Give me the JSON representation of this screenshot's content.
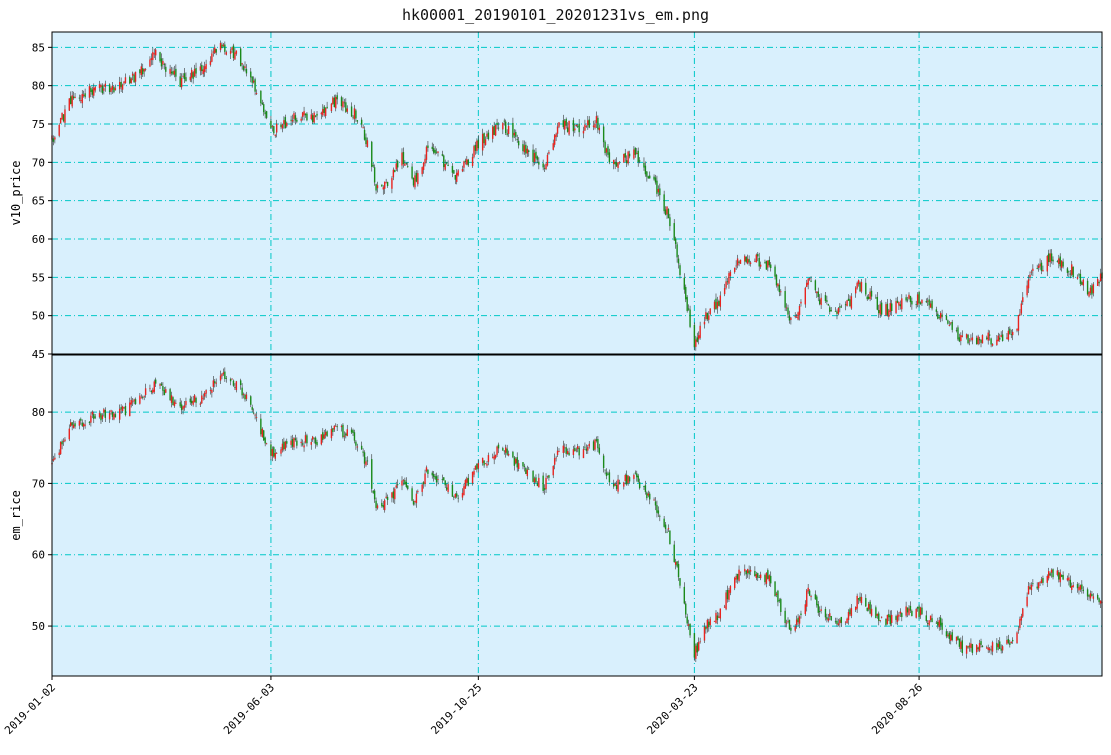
{
  "chart_data": [
    {
      "type": "candlestick",
      "title": "hk00001_20190101_20201231vs_em.png",
      "ylabel": "v10_price",
      "ylim": [
        45,
        87
      ],
      "yticks": [
        45,
        50,
        55,
        60,
        65,
        70,
        75,
        80,
        85
      ],
      "grid": true,
      "up_color": "#e8231f",
      "down_color": "#1a8a1a",
      "background": "#d9f0fd",
      "grid_color": "#00c8c8",
      "x_type": "date",
      "xticks": [
        "2019-01-02",
        "2019-06-03",
        "2019-10-25",
        "2020-03-23",
        "2020-08-26"
      ],
      "x_range": [
        "2019-01-02",
        "2020-12-31"
      ],
      "series": [
        {
          "close_path": [
            [
              "2019-01-02",
              73
            ],
            [
              "2019-01-15",
              78
            ],
            [
              "2019-02-01",
              79.5
            ],
            [
              "2019-02-20",
              80
            ],
            [
              "2019-03-05",
              82
            ],
            [
              "2019-03-15",
              84
            ],
            [
              "2019-04-01",
              80.5
            ],
            [
              "2019-04-15",
              82
            ],
            [
              "2019-04-30",
              85.5
            ],
            [
              "2019-05-10",
              84
            ],
            [
              "2019-05-20",
              81
            ],
            [
              "2019-06-03",
              74
            ],
            [
              "2019-06-20",
              76
            ],
            [
              "2019-07-05",
              76
            ],
            [
              "2019-07-15",
              78
            ],
            [
              "2019-07-31",
              76.5
            ],
            [
              "2019-08-10",
              72
            ],
            [
              "2019-08-15",
              67
            ],
            [
              "2019-08-25",
              67.5
            ],
            [
              "2019-09-01",
              71
            ],
            [
              "2019-09-10",
              67
            ],
            [
              "2019-09-20",
              72
            ],
            [
              "2019-10-01",
              70
            ],
            [
              "2019-10-10",
              68
            ],
            [
              "2019-10-25",
              72.5
            ],
            [
              "2019-11-10",
              75
            ],
            [
              "2019-11-25",
              72
            ],
            [
              "2019-12-10",
              69.5
            ],
            [
              "2019-12-20",
              75
            ],
            [
              "2020-01-01",
              74.5
            ],
            [
              "2020-01-15",
              75.5
            ],
            [
              "2020-01-25",
              69.5
            ],
            [
              "2020-02-10",
              71
            ],
            [
              "2020-02-25",
              67
            ],
            [
              "2020-03-05",
              63
            ],
            [
              "2020-03-12",
              57
            ],
            [
              "2020-03-23",
              46
            ],
            [
              "2020-03-31",
              50
            ],
            [
              "2020-04-10",
              52
            ],
            [
              "2020-04-20",
              57
            ],
            [
              "2020-05-01",
              57.5
            ],
            [
              "2020-05-15",
              56.5
            ],
            [
              "2020-05-30",
              48.5
            ],
            [
              "2020-06-10",
              55
            ],
            [
              "2020-06-20",
              51.5
            ],
            [
              "2020-07-05",
              50.5
            ],
            [
              "2020-07-15",
              54
            ],
            [
              "2020-08-01",
              50.5
            ],
            [
              "2020-08-15",
              52
            ],
            [
              "2020-08-26",
              52
            ],
            [
              "2020-09-10",
              50
            ],
            [
              "2020-09-25",
              47
            ],
            [
              "2020-10-15",
              47
            ],
            [
              "2020-10-31",
              47.5
            ],
            [
              "2020-11-10",
              55
            ],
            [
              "2020-11-25",
              57.5
            ],
            [
              "2020-12-10",
              56
            ],
            [
              "2020-12-22",
              53
            ],
            [
              "2020-12-31",
              55
            ]
          ]
        }
      ]
    },
    {
      "type": "candlestick",
      "ylabel": "em_rice",
      "ylim": [
        43,
        88
      ],
      "yticks": [
        50,
        60,
        70,
        80
      ],
      "grid": true,
      "up_color": "#e8231f",
      "down_color": "#1a8a1a",
      "background": "#d9f0fd",
      "grid_color": "#00c8c8",
      "x_type": "date",
      "xticks": [
        "2019-01-02",
        "2019-06-03",
        "2019-10-25",
        "2020-03-23",
        "2020-08-26"
      ],
      "x_range": [
        "2019-01-02",
        "2020-12-31"
      ],
      "series": [
        {
          "close_path": [
            [
              "2019-01-02",
              73
            ],
            [
              "2019-01-15",
              78
            ],
            [
              "2019-02-01",
              79.5
            ],
            [
              "2019-02-20",
              80
            ],
            [
              "2019-03-05",
              82
            ],
            [
              "2019-03-15",
              84
            ],
            [
              "2019-04-01",
              80.5
            ],
            [
              "2019-04-15",
              82
            ],
            [
              "2019-04-30",
              85.5
            ],
            [
              "2019-05-10",
              84
            ],
            [
              "2019-05-20",
              81
            ],
            [
              "2019-06-03",
              74
            ],
            [
              "2019-06-20",
              76
            ],
            [
              "2019-07-05",
              76
            ],
            [
              "2019-07-15",
              78
            ],
            [
              "2019-07-31",
              76.5
            ],
            [
              "2019-08-10",
              72
            ],
            [
              "2019-08-15",
              67
            ],
            [
              "2019-08-25",
              67.5
            ],
            [
              "2019-09-01",
              71
            ],
            [
              "2019-09-10",
              67
            ],
            [
              "2019-09-20",
              72
            ],
            [
              "2019-10-01",
              70
            ],
            [
              "2019-10-10",
              68
            ],
            [
              "2019-10-25",
              72.5
            ],
            [
              "2019-11-10",
              75
            ],
            [
              "2019-11-25",
              72
            ],
            [
              "2019-12-10",
              69.5
            ],
            [
              "2019-12-20",
              75
            ],
            [
              "2020-01-01",
              74.5
            ],
            [
              "2020-01-15",
              75.5
            ],
            [
              "2020-01-25",
              69.5
            ],
            [
              "2020-02-10",
              71
            ],
            [
              "2020-02-25",
              67
            ],
            [
              "2020-03-05",
              63
            ],
            [
              "2020-03-12",
              57
            ],
            [
              "2020-03-23",
              46
            ],
            [
              "2020-03-31",
              50
            ],
            [
              "2020-04-10",
              52
            ],
            [
              "2020-04-20",
              57
            ],
            [
              "2020-05-01",
              57.5
            ],
            [
              "2020-05-15",
              56.5
            ],
            [
              "2020-05-30",
              48.5
            ],
            [
              "2020-06-10",
              55
            ],
            [
              "2020-06-20",
              51.5
            ],
            [
              "2020-07-05",
              50.5
            ],
            [
              "2020-07-15",
              54
            ],
            [
              "2020-08-01",
              50.5
            ],
            [
              "2020-08-15",
              52
            ],
            [
              "2020-08-26",
              52
            ],
            [
              "2020-09-10",
              50
            ],
            [
              "2020-09-25",
              47
            ],
            [
              "2020-10-15",
              47
            ],
            [
              "2020-10-31",
              47.5
            ],
            [
              "2020-11-10",
              55
            ],
            [
              "2020-11-25",
              57.5
            ],
            [
              "2020-12-10",
              56
            ],
            [
              "2020-12-22",
              54
            ],
            [
              "2020-12-31",
              54
            ]
          ]
        }
      ]
    }
  ]
}
